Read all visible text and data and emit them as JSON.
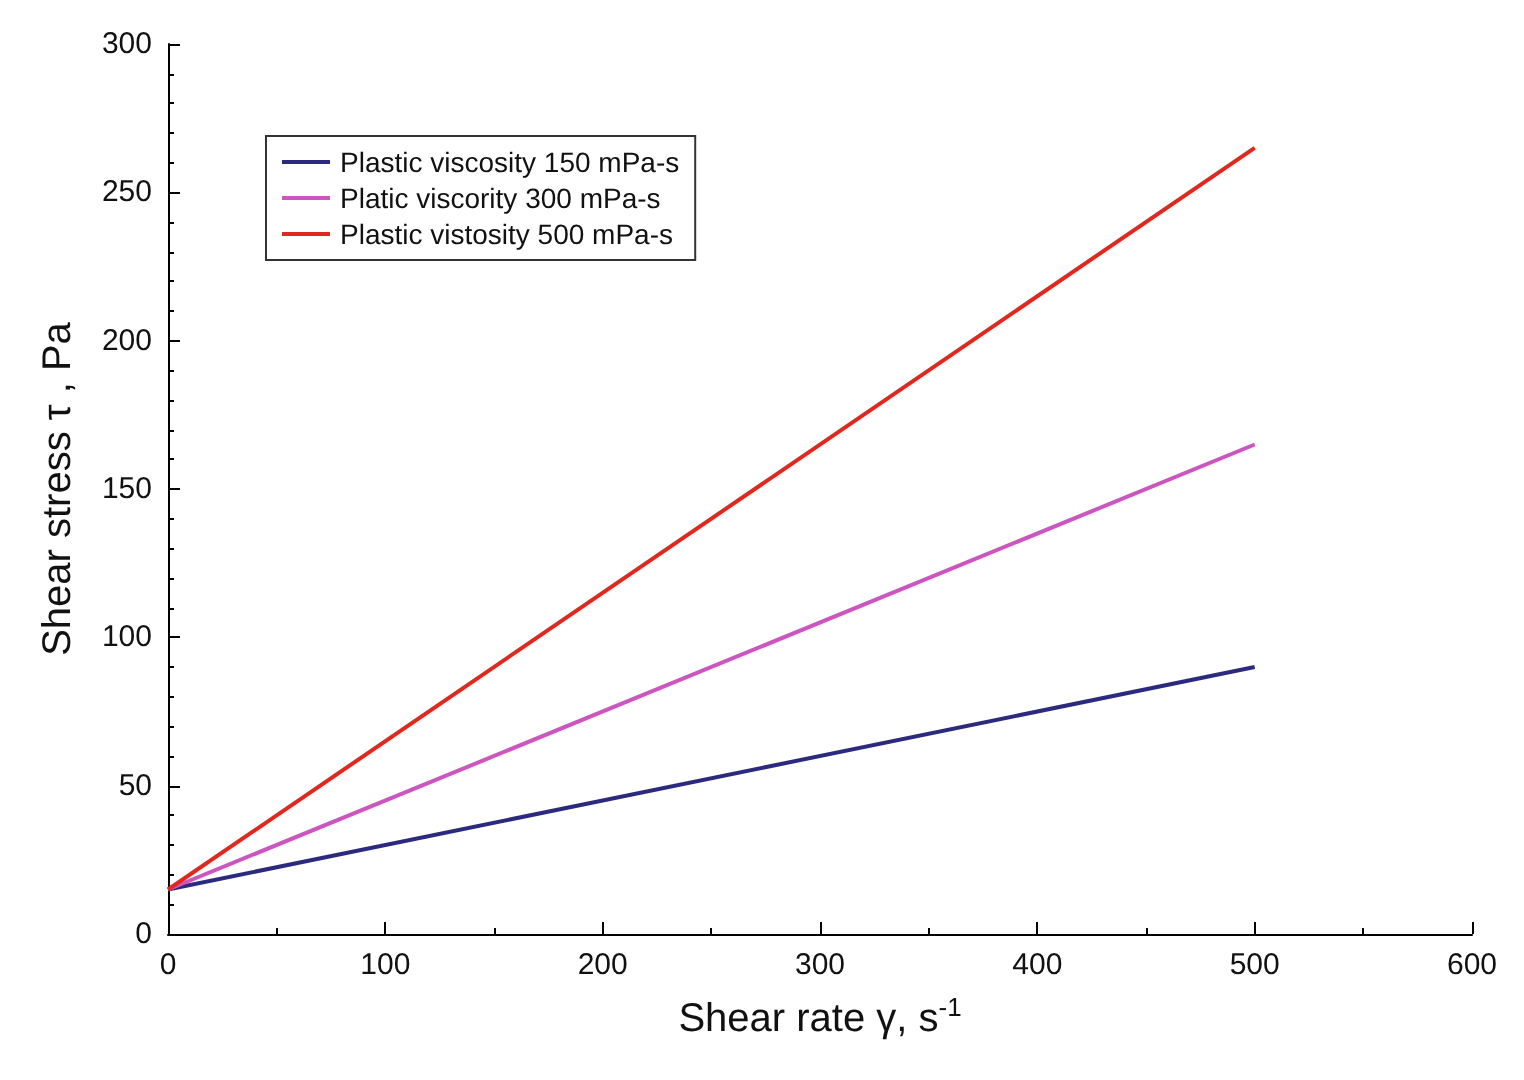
{
  "chart_data": {
    "type": "line",
    "x": [
      0,
      500
    ],
    "xlabel": "Shear rate γ, s$^{-1}$",
    "ylabel": "Shear stress τ , Pa",
    "series": [
      {
        "name": "Plastic viscosity 150 mPa-s",
        "color": "#2b2a7f",
        "values": [
          15,
          90
        ]
      },
      {
        "name": "Platic viscority 300 mPa-s",
        "color": "#cc55c0",
        "values": [
          15,
          165
        ]
      },
      {
        "name": "Plastic vistosity 500 mPa-s",
        "color": "#e0281e",
        "values": [
          15,
          265
        ]
      }
    ],
    "xlim": [
      0,
      600
    ],
    "xticks": [
      0,
      100,
      200,
      300,
      400,
      500,
      600
    ],
    "ylim": [
      0,
      300
    ],
    "yticks": [
      0,
      50,
      100,
      150,
      200,
      250,
      300
    ],
    "grid": false,
    "legend": "top left",
    "marker": "none",
    "line_style": "solid"
  }
}
